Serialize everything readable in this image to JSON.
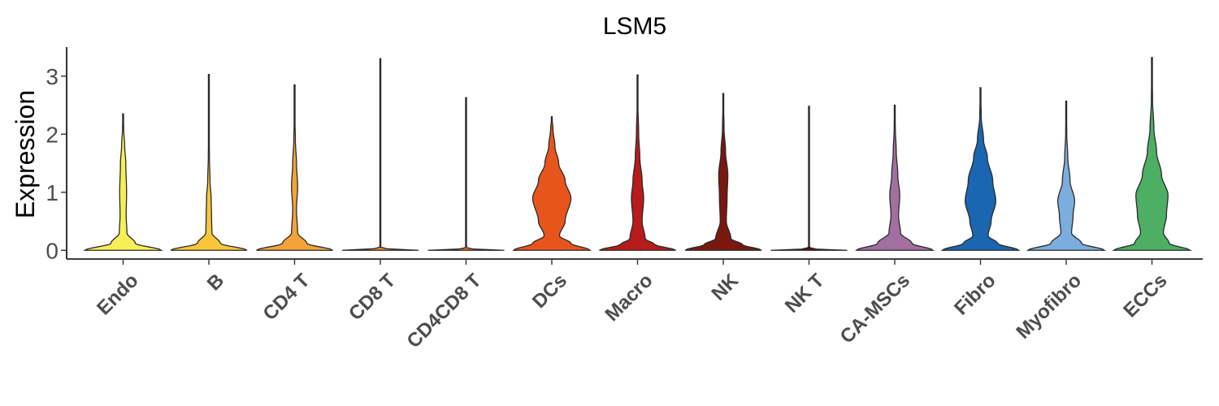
{
  "chart_data": {
    "type": "violin",
    "title": "LSM5",
    "xlabel": "",
    "ylabel": "Expression",
    "ylim": [
      -0.15,
      3.5
    ],
    "yticks": [
      0,
      1,
      2,
      3
    ],
    "grid": false,
    "legend": "none",
    "categories": [
      "Endo",
      "B",
      "CD4 T",
      "CD8 T",
      "CD4CD8 T",
      "DCs",
      "Macro",
      "NK",
      "NK T",
      "CA-MSCs",
      "Fibro",
      "Myofibro",
      "ECCs"
    ],
    "colors": [
      "#F7EF55",
      "#F8C63A",
      "#F2A43A",
      "#F08A2E",
      "#EE6C22",
      "#E8551C",
      "#B81B1B",
      "#7A170E",
      "#5A0E08",
      "#A36FA0",
      "#1B66B0",
      "#7BAEDD",
      "#4CAF63"
    ],
    "series": [
      {
        "category": "Endo",
        "max": 2.35,
        "profile": [
          [
            0,
            1.0
          ],
          [
            0.12,
            0.32
          ],
          [
            0.3,
            0.1
          ],
          [
            0.6,
            0.08
          ],
          [
            1.0,
            0.09
          ],
          [
            1.5,
            0.07
          ],
          [
            1.8,
            0.04
          ],
          [
            2.1,
            0.015
          ],
          [
            2.35,
            0
          ]
        ]
      },
      {
        "category": "B",
        "max": 3.03,
        "profile": [
          [
            0,
            1.0
          ],
          [
            0.12,
            0.3
          ],
          [
            0.3,
            0.08
          ],
          [
            0.6,
            0.07
          ],
          [
            0.9,
            0.06
          ],
          [
            1.2,
            0.03
          ],
          [
            1.6,
            0.015
          ],
          [
            2.0,
            0.008
          ],
          [
            2.5,
            0.004
          ],
          [
            3.03,
            0
          ]
        ]
      },
      {
        "category": "CD4 T",
        "max": 2.85,
        "profile": [
          [
            0,
            1.0
          ],
          [
            0.12,
            0.32
          ],
          [
            0.3,
            0.08
          ],
          [
            0.7,
            0.05
          ],
          [
            1.1,
            0.08
          ],
          [
            1.5,
            0.05
          ],
          [
            1.9,
            0.02
          ],
          [
            2.3,
            0.008
          ],
          [
            2.85,
            0
          ]
        ]
      },
      {
        "category": "CD8 T",
        "max": 3.3,
        "profile": [
          [
            0,
            1.0
          ],
          [
            0.02,
            0.2
          ],
          [
            0.05,
            0.01
          ],
          [
            3.3,
            0.01
          ]
        ]
      },
      {
        "category": "CD4CD8 T",
        "max": 2.63,
        "profile": [
          [
            0,
            1.0
          ],
          [
            0.02,
            0.2
          ],
          [
            0.05,
            0.01
          ],
          [
            2.63,
            0.01
          ]
        ]
      },
      {
        "category": "DCs",
        "max": 2.3,
        "profile": [
          [
            0,
            1.0
          ],
          [
            0.12,
            0.5
          ],
          [
            0.25,
            0.2
          ],
          [
            0.5,
            0.35
          ],
          [
            0.9,
            0.5
          ],
          [
            1.2,
            0.35
          ],
          [
            1.5,
            0.18
          ],
          [
            1.8,
            0.08
          ],
          [
            2.1,
            0.03
          ],
          [
            2.3,
            0
          ]
        ]
      },
      {
        "category": "Macro",
        "max": 3.02,
        "profile": [
          [
            0,
            1.0
          ],
          [
            0.1,
            0.45
          ],
          [
            0.2,
            0.2
          ],
          [
            0.5,
            0.12
          ],
          [
            0.9,
            0.16
          ],
          [
            1.2,
            0.12
          ],
          [
            1.6,
            0.06
          ],
          [
            2.0,
            0.03
          ],
          [
            2.5,
            0.01
          ],
          [
            3.02,
            0
          ]
        ]
      },
      {
        "category": "NK",
        "max": 2.7,
        "profile": [
          [
            0,
            1.0
          ],
          [
            0.1,
            0.5
          ],
          [
            0.2,
            0.2
          ],
          [
            0.5,
            0.08
          ],
          [
            0.9,
            0.1
          ],
          [
            1.3,
            0.12
          ],
          [
            1.7,
            0.06
          ],
          [
            2.1,
            0.02
          ],
          [
            2.7,
            0
          ]
        ]
      },
      {
        "category": "NK T",
        "max": 2.48,
        "profile": [
          [
            0,
            1.0
          ],
          [
            0.02,
            0.2
          ],
          [
            0.05,
            0.01
          ],
          [
            2.48,
            0.01
          ]
        ]
      },
      {
        "category": "CA-MSCs",
        "max": 2.5,
        "profile": [
          [
            0,
            1.0
          ],
          [
            0.12,
            0.45
          ],
          [
            0.3,
            0.15
          ],
          [
            0.6,
            0.1
          ],
          [
            0.95,
            0.13
          ],
          [
            1.3,
            0.08
          ],
          [
            1.7,
            0.04
          ],
          [
            2.1,
            0.015
          ],
          [
            2.5,
            0
          ]
        ]
      },
      {
        "category": "Fibro",
        "max": 2.8,
        "profile": [
          [
            0,
            1.0
          ],
          [
            0.12,
            0.45
          ],
          [
            0.25,
            0.2
          ],
          [
            0.5,
            0.28
          ],
          [
            0.85,
            0.4
          ],
          [
            1.2,
            0.32
          ],
          [
            1.6,
            0.18
          ],
          [
            1.9,
            0.08
          ],
          [
            2.3,
            0.02
          ],
          [
            2.8,
            0
          ]
        ]
      },
      {
        "category": "Myofibro",
        "max": 2.57,
        "profile": [
          [
            0,
            1.0
          ],
          [
            0.12,
            0.4
          ],
          [
            0.3,
            0.14
          ],
          [
            0.6,
            0.18
          ],
          [
            0.85,
            0.22
          ],
          [
            1.2,
            0.1
          ],
          [
            1.6,
            0.04
          ],
          [
            2.0,
            0.015
          ],
          [
            2.57,
            0
          ]
        ]
      },
      {
        "category": "ECCs",
        "max": 3.32,
        "profile": [
          [
            0,
            1.0
          ],
          [
            0.12,
            0.45
          ],
          [
            0.3,
            0.3
          ],
          [
            0.6,
            0.38
          ],
          [
            0.95,
            0.42
          ],
          [
            1.3,
            0.25
          ],
          [
            1.7,
            0.12
          ],
          [
            2.1,
            0.05
          ],
          [
            2.6,
            0.015
          ],
          [
            3.32,
            0
          ]
        ]
      }
    ]
  }
}
